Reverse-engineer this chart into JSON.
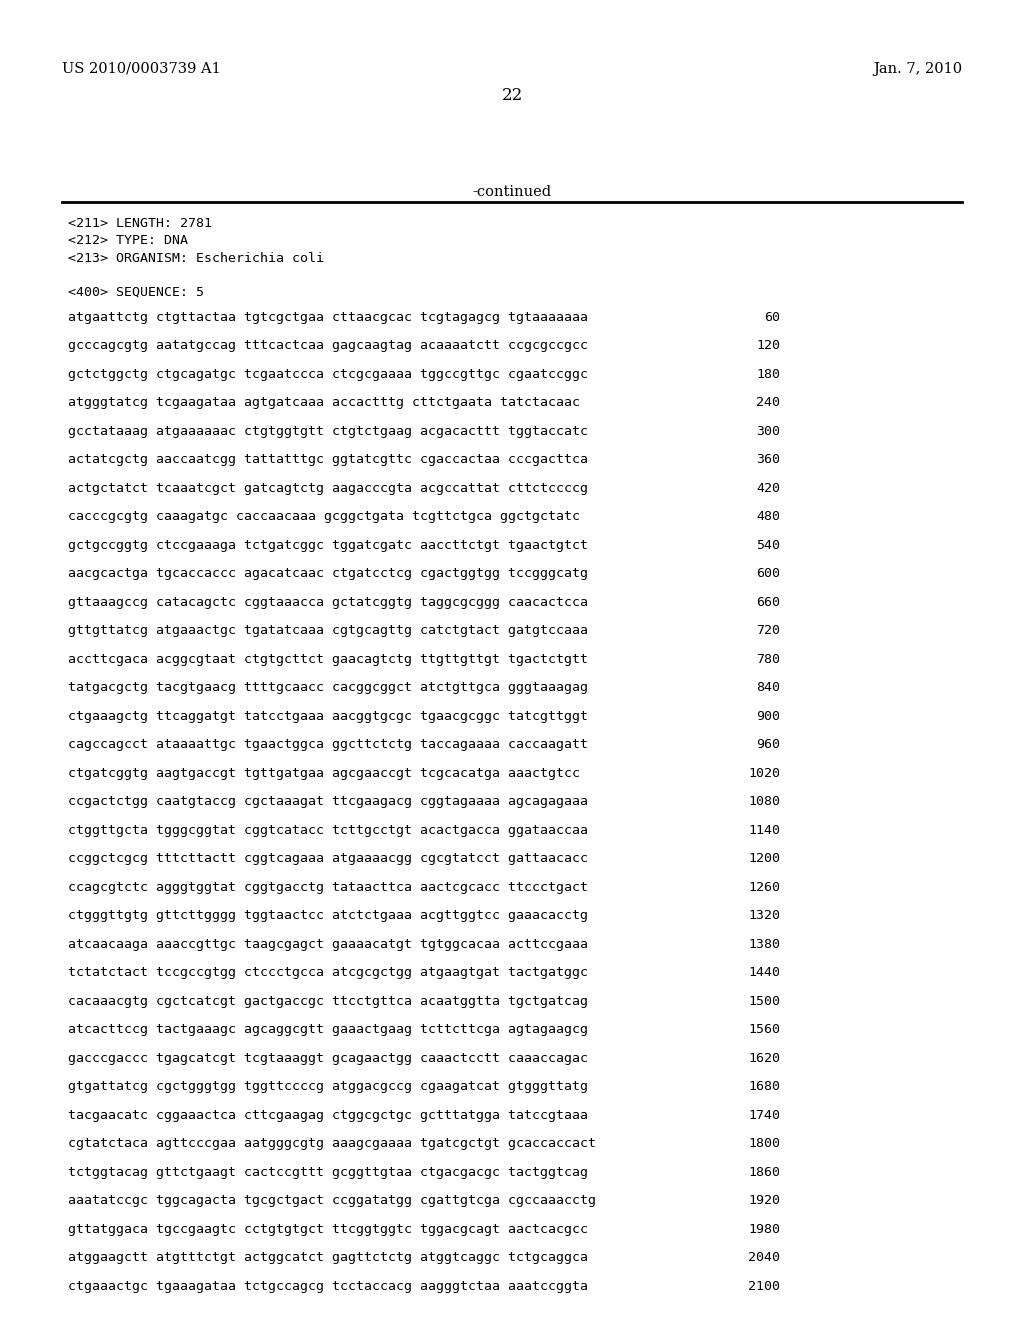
{
  "header_left": "US 2010/0003739 A1",
  "header_right": "Jan. 7, 2010",
  "page_number": "22",
  "continued_text": "-continued",
  "bg_color": "#ffffff",
  "text_color": "#000000",
  "meta_lines": [
    "<211> LENGTH: 2781",
    "<212> TYPE: DNA",
    "<213> ORGANISM: Escherichia coli",
    "",
    "<400> SEQUENCE: 5"
  ],
  "sequence_lines": [
    [
      "atgaattctg ctgttactaa tgtcgctgaa cttaacgcac tcgtagagcg tgtaaaaaaa",
      "60"
    ],
    [
      "gcccagcgtg aatatgccag tttcactcaa gagcaagtag acaaaatctt ccgcgccgcc",
      "120"
    ],
    [
      "gctctggctg ctgcagatgc tcgaatccca ctcgcgaaaa tggccgttgc cgaatccggc",
      "180"
    ],
    [
      "atgggtatcg tcgaagataa agtgatcaaa accactttg cttctgaata tatctacaac",
      "240"
    ],
    [
      "gcctataaag atgaaaaaac ctgtggtgtt ctgtctgaag acgacacttt tggtaccatc",
      "300"
    ],
    [
      "actatcgctg aaccaatcgg tattatttgc ggtatcgttc cgaccactaa cccgacttca",
      "360"
    ],
    [
      "actgctatct tcaaatcgct gatcagtctg aagacccgta acgccattat cttctccccg",
      "420"
    ],
    [
      "cacccgcgtg caaagatgc caccaacaaa gcggctgata tcgttctgca ggctgctatc",
      "480"
    ],
    [
      "gctgccggtg ctccgaaaga tctgatcggc tggatcgatc aaccttctgt tgaactgtct",
      "540"
    ],
    [
      "aacgcactga tgcaccaccc agacatcaac ctgatcctcg cgactggtgg tccgggcatg",
      "600"
    ],
    [
      "gttaaagccg catacagctc cggtaaacca gctatcggtg taggcgcggg caacactcca",
      "660"
    ],
    [
      "gttgttatcg atgaaactgc tgatatcaaa cgtgcagttg catctgtact gatgtccaaa",
      "720"
    ],
    [
      "accttcgaca acggcgtaat ctgtgcttct gaacagtctg ttgttgttgt tgactctgtt",
      "780"
    ],
    [
      "tatgacgctg tacgtgaacg ttttgcaacc cacggcggct atctgttgca gggtaaagag",
      "840"
    ],
    [
      "ctgaaagctg ttcaggatgt tatcctgaaa aacggtgcgc tgaacgcggc tatcgttggt",
      "900"
    ],
    [
      "cagccagcct ataaaattgc tgaactggca ggcttctctg taccagaaaa caccaagatt",
      "960"
    ],
    [
      "ctgatcggtg aagtgaccgt tgttgatgaa agcgaaccgt tcgcacatga aaactgtcc",
      "1020"
    ],
    [
      "ccgactctgg caatgtaccg cgctaaagat ttcgaagacg cggtagaaaa agcagagaaa",
      "1080"
    ],
    [
      "ctggttgcta tgggcggtat cggtcatacc tcttgcctgt acactgacca ggataaccaa",
      "1140"
    ],
    [
      "ccggctcgcg tttcttactt cggtcagaaa atgaaaacgg cgcgtatcct gattaacacc",
      "1200"
    ],
    [
      "ccagcgtctc agggtggtat cggtgacctg tataacttca aactcgcacc ttccctgact",
      "1260"
    ],
    [
      "ctgggttgtg gttcttgggg tggtaactcc atctctgaaa acgttggtcc gaaacacctg",
      "1320"
    ],
    [
      "atcaacaaga aaaccgttgc taagcgagct gaaaacatgt tgtggcacaa acttccgaaa",
      "1380"
    ],
    [
      "tctatctact tccgccgtgg ctccctgcca atcgcgctgg atgaagtgat tactgatggc",
      "1440"
    ],
    [
      "cacaaacgtg cgctcatcgt gactgaccgc ttcctgttca acaatggtta tgctgatcag",
      "1500"
    ],
    [
      "atcacttccg tactgaaagc agcaggcgtt gaaactgaag tcttcttcga agtagaagcg",
      "1560"
    ],
    [
      "gacccgaccc tgagcatcgt tcgtaaaggt gcagaactgg caaactcctt caaaccagac",
      "1620"
    ],
    [
      "gtgattatcg cgctgggtgg tggttccccg atggacgccg cgaagatcat gtgggttatg",
      "1680"
    ],
    [
      "tacgaacatc cggaaactca cttcgaagag ctggcgctgc gctttatgga tatccgtaaa",
      "1740"
    ],
    [
      "cgtatctaca agttcccgaa aatgggcgtg aaagcgaaaa tgatcgctgt gcaccaccact",
      "1800"
    ],
    [
      "tctggtacag gttctgaagt cactccgttt gcggttgtaa ctgacgacgc tactggtcag",
      "1860"
    ],
    [
      "aaatatccgc tggcagacta tgcgctgact ccggatatgg cgattgtcga cgccaaacctg",
      "1920"
    ],
    [
      "gttatggaca tgccgaagtc cctgtgtgct ttcggtggtc tggacgcagt aactcacgcc",
      "1980"
    ],
    [
      "atggaagctt atgtttctgt actggcatct gagttctctg atggtcaggc tctgcaggca",
      "2040"
    ],
    [
      "ctgaaactgc tgaaagataa tctgccagcg tcctaccacg aagggtctaa aaatccggta",
      "2100"
    ]
  ]
}
